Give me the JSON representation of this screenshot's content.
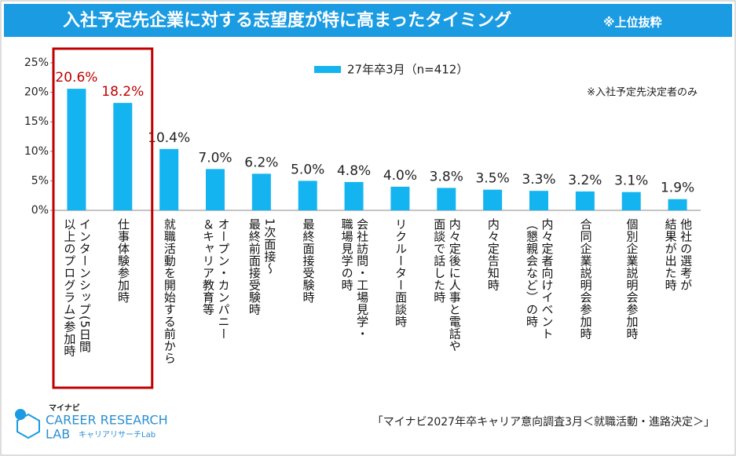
{
  "chart_data": {
    "type": "bar",
    "title": "入社予定先企業に対する志望度が特に高まったタイミング",
    "subtitle": "※上位抜粋",
    "note": "※入社予定先決定者のみ",
    "source": "「マイナビ2027年卒キャリア意向調査3月＜就職活動・進路決定＞」",
    "logo": {
      "brand": "マイナビ",
      "name": "CAREER RESEARCH",
      "lab": "LAB",
      "sub": "キャリアリサーチLab"
    },
    "categories": [
      "インターンシップ(5日間\n以上のプログラム)参加時",
      "仕事体験参加時",
      "就職活動を開始する前から",
      "オープン・カンパニー\n＆キャリア教育等",
      "1次面接～\n最終前面接受験時",
      "最終面接受験時",
      "会社訪問・工場見学・\n職場見学の時",
      "リクルーター面談時",
      "内々定後に人事と電話や\n面談で話した時",
      "内々定告知時",
      "内々定者向けイベント\n（懇親会など）の時",
      "合同企業説明会参加時",
      "個別企業説明会参加時",
      "他社の選考が\n結果が出た時"
    ],
    "series": [
      {
        "name": "27年卒3月（n=412）",
        "color": "#14b4f0",
        "values": [
          20.6,
          18.2,
          10.4,
          7.0,
          6.2,
          5.0,
          4.8,
          4.0,
          3.8,
          3.5,
          3.3,
          3.2,
          3.1,
          1.9
        ],
        "value_labels": [
          "20.6%",
          "18.2%",
          "10.4%",
          "7.0%",
          "6.2%",
          "5.0%",
          "4.8%",
          "4.0%",
          "3.8%",
          "3.5%",
          "3.3%",
          "3.2%",
          "3.1%",
          "1.9%"
        ]
      }
    ],
    "ylim": [
      0,
      25
    ],
    "yticks": [
      {
        "value": 0,
        "label": "0%"
      },
      {
        "value": 5,
        "label": "5%"
      },
      {
        "value": 10,
        "label": "10%"
      },
      {
        "value": 15,
        "label": "15%"
      },
      {
        "value": 20,
        "label": "20%"
      },
      {
        "value": 25,
        "label": "25%"
      }
    ],
    "grid": false,
    "header_color": "#1a9be2",
    "highlight": {
      "categories": [
        0,
        1
      ],
      "color": "#c00000"
    }
  }
}
